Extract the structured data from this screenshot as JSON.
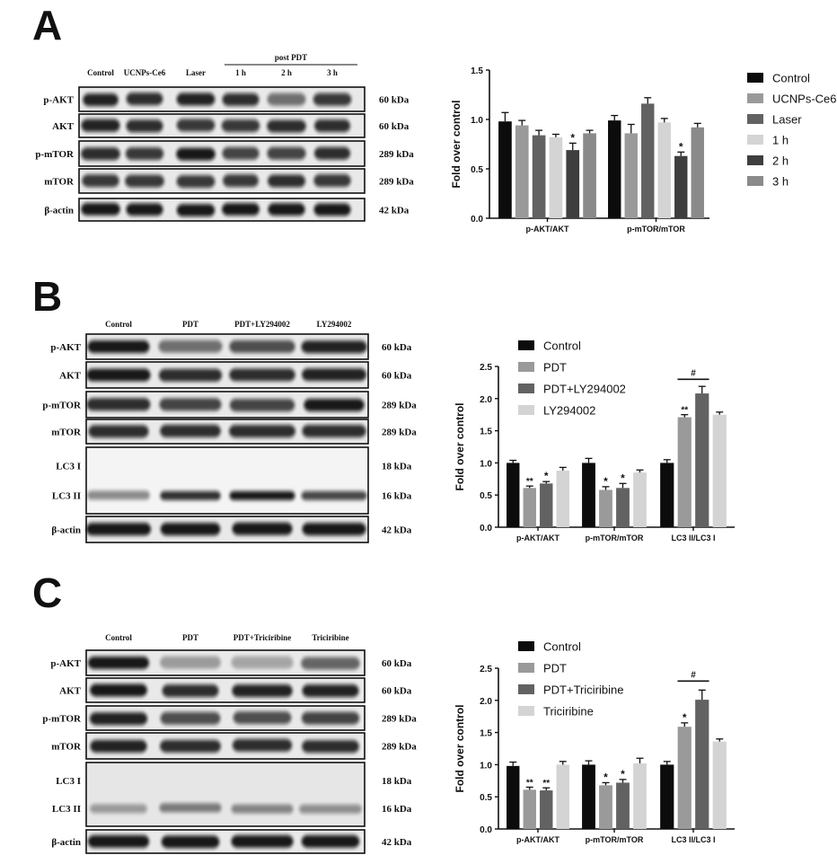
{
  "colors": {
    "Control": "#0c0c0c",
    "UCNPs-Ce6": "#9a9a9a",
    "Laser": "#626262",
    "1 h": "#d4d4d4",
    "2 h": "#3e3e3e",
    "3 h": "#8a8a8a",
    "PDT": "#9a9a9a",
    "PDT+LY294002": "#626262",
    "LY294002": "#d4d4d4",
    "PDT+Triciribine": "#626262",
    "Triciribine": "#d4d4d4"
  },
  "panels": [
    {
      "letter": "A",
      "blot": {
        "lanes": [
          "Control",
          "UCNPs-Ce6",
          "Laser",
          "1 h",
          "2 h",
          "3 h"
        ],
        "group_header": "post PDT",
        "rows": [
          {
            "label": "p-AKT",
            "kda": "60 kDa"
          },
          {
            "label": "AKT",
            "kda": "60 kDa"
          },
          {
            "label": "p-mTOR",
            "kda": "289 kDa"
          },
          {
            "label": "mTOR",
            "kda": "289 kDa"
          },
          {
            "label": "β-actin",
            "kda": "42 kDa"
          }
        ]
      }
    },
    {
      "letter": "B",
      "blot": {
        "lanes": [
          "Control",
          "PDT",
          "PDT+LY294002",
          "LY294002"
        ],
        "rows": [
          {
            "label": "p-AKT",
            "kda": "60 kDa"
          },
          {
            "label": "AKT",
            "kda": "60 kDa"
          },
          {
            "label": "p-mTOR",
            "kda": "289 kDa"
          },
          {
            "label": "mTOR",
            "kda": "289 kDa"
          },
          {
            "label": "LC3 I",
            "kda": "18 kDa"
          },
          {
            "label": "LC3 II",
            "kda": "16 kDa"
          },
          {
            "label": "β-actin",
            "kda": "42 kDa"
          }
        ]
      }
    },
    {
      "letter": "C",
      "blot": {
        "lanes": [
          "Control",
          "PDT",
          "PDT+Triciribine",
          "Triciribine"
        ],
        "rows": [
          {
            "label": "p-AKT",
            "kda": "60 kDa"
          },
          {
            "label": "AKT",
            "kda": "60 kDa"
          },
          {
            "label": "p-mTOR",
            "kda": "289 kDa"
          },
          {
            "label": "mTOR",
            "kda": "289 kDa"
          },
          {
            "label": "LC3 I",
            "kda": "18 kDa"
          },
          {
            "label": "LC3 II",
            "kda": "16 kDa"
          },
          {
            "label": "β-actin",
            "kda": "42 kDa"
          }
        ]
      }
    }
  ],
  "chart_data": [
    {
      "type": "bar",
      "ylabel": "Fold over control",
      "ylim": [
        0,
        1.5
      ],
      "yticks": [
        "0.0",
        "0.5",
        "1.0",
        "1.5"
      ],
      "categories": [
        "p-AKT/AKT",
        "p-mTOR/mTOR"
      ],
      "legend": "right",
      "series": [
        {
          "name": "Control",
          "values": [
            0.98,
            0.99
          ],
          "errors": [
            0.09,
            0.05
          ],
          "marks": [
            "",
            ""
          ]
        },
        {
          "name": "UCNPs-Ce6",
          "values": [
            0.94,
            0.86
          ],
          "errors": [
            0.05,
            0.09
          ],
          "marks": [
            "",
            ""
          ]
        },
        {
          "name": "Laser",
          "values": [
            0.84,
            1.16
          ],
          "errors": [
            0.05,
            0.06
          ],
          "marks": [
            "",
            ""
          ]
        },
        {
          "name": "1 h",
          "values": [
            0.82,
            0.97
          ],
          "errors": [
            0.03,
            0.04
          ],
          "marks": [
            "",
            ""
          ]
        },
        {
          "name": "2 h",
          "values": [
            0.69,
            0.63
          ],
          "errors": [
            0.07,
            0.04
          ],
          "marks": [
            "*",
            "*"
          ]
        },
        {
          "name": "3 h",
          "values": [
            0.86,
            0.92
          ],
          "errors": [
            0.03,
            0.04
          ],
          "marks": [
            "",
            ""
          ]
        }
      ]
    },
    {
      "type": "bar",
      "ylabel": "Fold over control",
      "ylim": [
        0,
        2.5
      ],
      "yticks": [
        "0.0",
        "0.5",
        "1.0",
        "1.5",
        "2.0",
        "2.5"
      ],
      "categories": [
        "p-AKT/AKT",
        "p-mTOR/mTOR",
        "LC3 II/LC3 I"
      ],
      "legend": "top",
      "brackets": [
        {
          "category": 2,
          "from": 1,
          "to": 2,
          "y": 2.3,
          "label": "#"
        }
      ],
      "series": [
        {
          "name": "Control",
          "values": [
            1.0,
            1.0,
            1.0
          ],
          "errors": [
            0.04,
            0.07,
            0.05
          ],
          "marks": [
            "",
            "",
            ""
          ]
        },
        {
          "name": "PDT",
          "values": [
            0.61,
            0.58,
            1.71
          ],
          "errors": [
            0.03,
            0.05,
            0.04
          ],
          "marks": [
            "**",
            "*",
            "**"
          ]
        },
        {
          "name": "PDT+LY294002",
          "values": [
            0.68,
            0.61,
            2.08
          ],
          "errors": [
            0.03,
            0.07,
            0.11
          ],
          "marks": [
            "*",
            "*",
            ""
          ]
        },
        {
          "name": "LY294002",
          "values": [
            0.88,
            0.85,
            1.75
          ],
          "errors": [
            0.05,
            0.04,
            0.04
          ],
          "marks": [
            "",
            "",
            ""
          ]
        }
      ]
    },
    {
      "type": "bar",
      "ylabel": "Fold over control",
      "ylim": [
        0,
        2.5
      ],
      "yticks": [
        "0.0",
        "0.5",
        "1.0",
        "1.5",
        "2.0",
        "2.5"
      ],
      "categories": [
        "p-AKT/AKT",
        "p-mTOR/mTOR",
        "LC3 II/LC3 I"
      ],
      "legend": "top",
      "brackets": [
        {
          "category": 2,
          "from": 1,
          "to": 2,
          "y": 2.3,
          "label": "#"
        }
      ],
      "series": [
        {
          "name": "Control",
          "values": [
            0.98,
            1.0,
            1.0
          ],
          "errors": [
            0.06,
            0.06,
            0.05
          ],
          "marks": [
            "",
            "",
            ""
          ]
        },
        {
          "name": "PDT",
          "values": [
            0.61,
            0.68,
            1.59
          ],
          "errors": [
            0.04,
            0.04,
            0.06
          ],
          "marks": [
            "**",
            "*",
            "*"
          ]
        },
        {
          "name": "PDT+Triciribine",
          "values": [
            0.6,
            0.72,
            2.01
          ],
          "errors": [
            0.04,
            0.05,
            0.15
          ],
          "marks": [
            "**",
            "*",
            ""
          ]
        },
        {
          "name": "Triciribine",
          "values": [
            1.0,
            1.02,
            1.36
          ],
          "errors": [
            0.05,
            0.08,
            0.04
          ],
          "marks": [
            "",
            "",
            ""
          ]
        }
      ]
    }
  ]
}
